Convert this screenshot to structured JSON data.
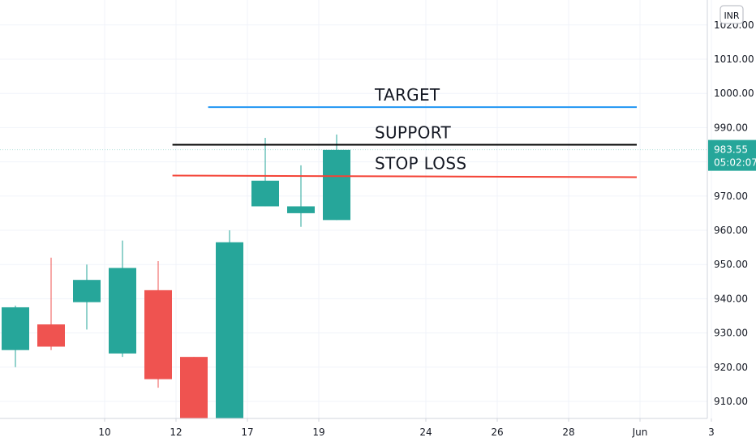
{
  "chart_data": {
    "type": "candlestick",
    "currency": "INR",
    "y_ticks": [
      910,
      920,
      930,
      940,
      950,
      960,
      970,
      980,
      990,
      1000,
      1010,
      1020
    ],
    "y_tick_labels": [
      "910.00",
      "920.00",
      "930.00",
      "940.00",
      "950.00",
      "960.00",
      "970.00",
      "980.00",
      "990.00",
      "1000.00",
      "1010.00",
      "1020.00"
    ],
    "ylim": [
      904,
      1028
    ],
    "x_ticks": [
      {
        "label": "10",
        "slot": 2.5
      },
      {
        "label": "12",
        "slot": 4.5
      },
      {
        "label": "17",
        "slot": 6.5
      },
      {
        "label": "19",
        "slot": 8.5
      },
      {
        "label": "24",
        "slot": 11.5
      },
      {
        "label": "26",
        "slot": 13.5
      },
      {
        "label": "28",
        "slot": 15.5
      },
      {
        "label": "Jun",
        "slot": 17.5
      },
      {
        "label": "3",
        "slot": 19.5
      }
    ],
    "candles": [
      {
        "o": 925.0,
        "h": 938.0,
        "l": 920.0,
        "c": 937.5
      },
      {
        "o": 932.5,
        "h": 952.0,
        "l": 925.0,
        "c": 926.0
      },
      {
        "o": 939.0,
        "h": 950.0,
        "l": 931.0,
        "c": 945.5
      },
      {
        "o": 924.0,
        "h": 957.0,
        "l": 923.0,
        "c": 949.0
      },
      {
        "o": 942.5,
        "h": 951.0,
        "l": 914.0,
        "c": 916.5
      },
      {
        "o": 923.0,
        "h": 923.0,
        "l": 900.0,
        "c": 900.0
      },
      {
        "o": 900.0,
        "h": 960.0,
        "l": 900.0,
        "c": 956.5
      },
      {
        "o": 967.0,
        "h": 987.0,
        "l": 967.0,
        "c": 974.5
      },
      {
        "o": 965.0,
        "h": 979.0,
        "l": 961.0,
        "c": 967.0
      },
      {
        "o": 963.0,
        "h": 988.0,
        "l": 963.0,
        "c": 983.5
      }
    ],
    "current_price": {
      "label": "983.55",
      "time": "05:02:07",
      "value": 983.55
    },
    "annotations": [
      {
        "label": "TARGET",
        "value": 996,
        "color": "#2196F3",
        "slot_start": 5.4,
        "slot_end": 17.5
      },
      {
        "label": "SUPPORT",
        "value": 985,
        "color": "#000000",
        "slot_start": 4.4,
        "slot_end": 17.5
      },
      {
        "label": "STOP LOSS",
        "value": 976,
        "color": "#F44336",
        "slot_start": 4.4,
        "slot_end": 17.5
      }
    ],
    "colors": {
      "up": "#26A69A",
      "down": "#EF5350",
      "price_line": "#26A69A"
    }
  }
}
